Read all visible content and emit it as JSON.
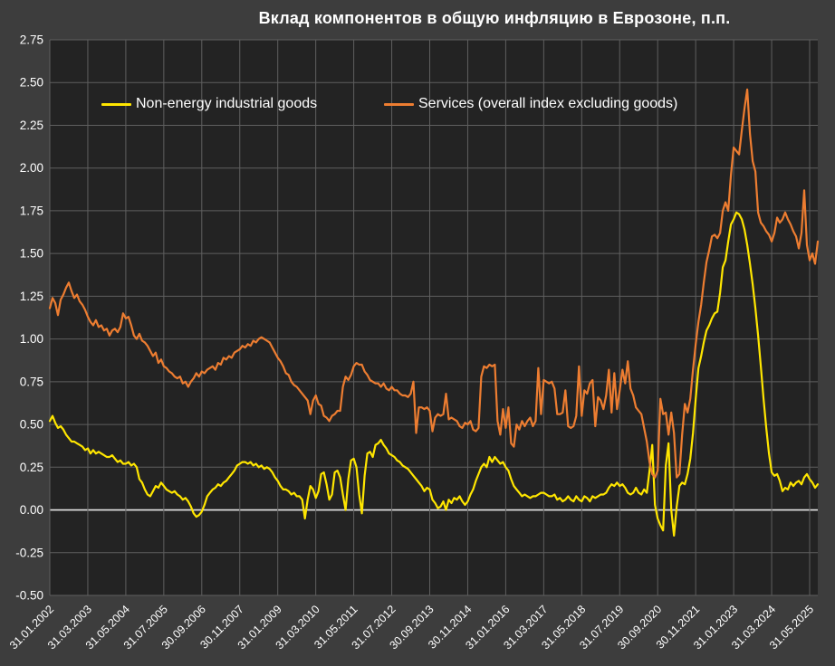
{
  "title": "Вклад компонентов в общую инфляцию в Еврозоне, п.п.",
  "colors": {
    "background": "#3d3d3d",
    "plot_background": "#232323",
    "gridline": "#5f5f5f",
    "zero_line": "#e8e8e8",
    "text": "#ffffff",
    "neig_line": "#ffe600",
    "services_line": "#ed7d31"
  },
  "legend": {
    "items": [
      {
        "label": "Non-energy industrial goods",
        "color": "#ffe600"
      },
      {
        "label": "Services (overall index excluding goods)",
        "color": "#ed7d31"
      }
    ]
  },
  "chart_data": {
    "type": "line",
    "title": "Вклад компонентов в общую инфляцию в Еврозоне, п.п.",
    "x_start": "2002-01",
    "x_freq": "monthly",
    "grid": true,
    "legend_position": "top-left-inside",
    "ylim": [
      -0.5,
      2.75
    ],
    "y_tick_step": 0.25,
    "x_tick_labels": [
      "31.01.2002",
      "31.03.2003",
      "31.05.2004",
      "31.07.2005",
      "30.09.2006",
      "30.11.2007",
      "31.01.2009",
      "31.03.2010",
      "31.05.2011",
      "31.07.2012",
      "30.09.2013",
      "30.11.2014",
      "31.01.2016",
      "31.03.2017",
      "31.05.2018",
      "31.07.2019",
      "30.09.2020",
      "30.11.2021",
      "31.01.2023",
      "31.03.2024",
      "31.05.2025"
    ],
    "x_tick_month_indices": [
      0,
      14,
      28,
      42,
      56,
      70,
      84,
      98,
      112,
      126,
      140,
      154,
      168,
      182,
      196,
      210,
      224,
      238,
      252,
      266,
      280
    ],
    "series": [
      {
        "name": "Non-energy industrial goods",
        "color": "#ffe600",
        "values": [
          0.52,
          0.55,
          0.51,
          0.48,
          0.49,
          0.47,
          0.44,
          0.42,
          0.4,
          0.4,
          0.39,
          0.38,
          0.37,
          0.35,
          0.36,
          0.33,
          0.35,
          0.33,
          0.34,
          0.33,
          0.32,
          0.31,
          0.31,
          0.32,
          0.3,
          0.28,
          0.29,
          0.27,
          0.27,
          0.28,
          0.26,
          0.27,
          0.25,
          0.18,
          0.16,
          0.12,
          0.09,
          0.08,
          0.11,
          0.14,
          0.13,
          0.16,
          0.14,
          0.12,
          0.11,
          0.1,
          0.11,
          0.09,
          0.08,
          0.06,
          0.07,
          0.05,
          0.02,
          -0.02,
          -0.04,
          -0.03,
          -0.01,
          0.03,
          0.08,
          0.1,
          0.12,
          0.13,
          0.15,
          0.14,
          0.16,
          0.17,
          0.19,
          0.21,
          0.23,
          0.26,
          0.27,
          0.28,
          0.28,
          0.27,
          0.28,
          0.26,
          0.27,
          0.25,
          0.26,
          0.24,
          0.25,
          0.24,
          0.22,
          0.19,
          0.17,
          0.14,
          0.12,
          0.12,
          0.11,
          0.09,
          0.1,
          0.08,
          0.08,
          0.06,
          -0.05,
          0.06,
          0.14,
          0.12,
          0.07,
          0.11,
          0.21,
          0.22,
          0.15,
          0.06,
          0.09,
          0.22,
          0.23,
          0.19,
          0.09,
          0.0,
          0.18,
          0.29,
          0.3,
          0.25,
          0.09,
          -0.02,
          0.2,
          0.33,
          0.34,
          0.31,
          0.38,
          0.39,
          0.41,
          0.38,
          0.36,
          0.33,
          0.32,
          0.31,
          0.29,
          0.28,
          0.26,
          0.25,
          0.24,
          0.22,
          0.2,
          0.18,
          0.16,
          0.14,
          0.11,
          0.13,
          0.12,
          0.06,
          0.04,
          0.01,
          0.02,
          0.05,
          0.0,
          0.06,
          0.04,
          0.07,
          0.06,
          0.08,
          0.05,
          0.03,
          0.05,
          0.09,
          0.12,
          0.17,
          0.21,
          0.25,
          0.27,
          0.25,
          0.31,
          0.28,
          0.31,
          0.29,
          0.27,
          0.28,
          0.25,
          0.23,
          0.18,
          0.14,
          0.12,
          0.1,
          0.08,
          0.09,
          0.08,
          0.07,
          0.08,
          0.08,
          0.09,
          0.1,
          0.1,
          0.09,
          0.08,
          0.08,
          0.09,
          0.06,
          0.07,
          0.05,
          0.06,
          0.08,
          0.06,
          0.05,
          0.08,
          0.06,
          0.05,
          0.08,
          0.07,
          0.05,
          0.08,
          0.07,
          0.08,
          0.09,
          0.09,
          0.1,
          0.13,
          0.15,
          0.14,
          0.16,
          0.14,
          0.15,
          0.13,
          0.1,
          0.09,
          0.1,
          0.13,
          0.1,
          0.09,
          0.12,
          0.1,
          0.23,
          0.38,
          0.03,
          -0.05,
          -0.09,
          -0.12,
          0.26,
          0.39,
          0.0,
          -0.15,
          0.02,
          0.14,
          0.16,
          0.15,
          0.21,
          0.3,
          0.45,
          0.65,
          0.83,
          0.9,
          0.98,
          1.05,
          1.08,
          1.12,
          1.15,
          1.16,
          1.27,
          1.42,
          1.46,
          1.57,
          1.67,
          1.7,
          1.74,
          1.73,
          1.7,
          1.64,
          1.55,
          1.44,
          1.32,
          1.18,
          1.02,
          0.84,
          0.65,
          0.48,
          0.33,
          0.22,
          0.2,
          0.21,
          0.17,
          0.11,
          0.13,
          0.12,
          0.16,
          0.14,
          0.16,
          0.17,
          0.15,
          0.19,
          0.21,
          0.18,
          0.16,
          0.13,
          0.15
        ]
      },
      {
        "name": "Services (overall index excluding goods)",
        "color": "#ed7d31",
        "values": [
          1.18,
          1.24,
          1.21,
          1.14,
          1.23,
          1.26,
          1.3,
          1.33,
          1.28,
          1.24,
          1.26,
          1.22,
          1.2,
          1.17,
          1.13,
          1.1,
          1.08,
          1.11,
          1.07,
          1.08,
          1.05,
          1.06,
          1.02,
          1.05,
          1.06,
          1.04,
          1.07,
          1.15,
          1.12,
          1.13,
          1.08,
          1.02,
          1.0,
          1.03,
          0.99,
          0.98,
          0.96,
          0.93,
          0.9,
          0.92,
          0.86,
          0.88,
          0.84,
          0.83,
          0.81,
          0.8,
          0.78,
          0.77,
          0.78,
          0.74,
          0.75,
          0.72,
          0.75,
          0.77,
          0.8,
          0.78,
          0.81,
          0.8,
          0.82,
          0.83,
          0.84,
          0.82,
          0.86,
          0.85,
          0.89,
          0.88,
          0.9,
          0.89,
          0.92,
          0.93,
          0.94,
          0.96,
          0.95,
          0.97,
          0.96,
          0.99,
          0.98,
          1.0,
          1.01,
          1.0,
          0.99,
          0.98,
          0.95,
          0.92,
          0.89,
          0.87,
          0.84,
          0.8,
          0.79,
          0.75,
          0.73,
          0.72,
          0.7,
          0.68,
          0.66,
          0.64,
          0.56,
          0.64,
          0.67,
          0.62,
          0.61,
          0.55,
          0.54,
          0.52,
          0.55,
          0.56,
          0.58,
          0.58,
          0.72,
          0.78,
          0.76,
          0.79,
          0.84,
          0.86,
          0.85,
          0.85,
          0.81,
          0.79,
          0.76,
          0.75,
          0.74,
          0.74,
          0.72,
          0.74,
          0.71,
          0.7,
          0.72,
          0.7,
          0.7,
          0.68,
          0.67,
          0.67,
          0.66,
          0.68,
          0.75,
          0.45,
          0.6,
          0.6,
          0.59,
          0.6,
          0.58,
          0.46,
          0.54,
          0.56,
          0.55,
          0.56,
          0.68,
          0.53,
          0.54,
          0.53,
          0.52,
          0.49,
          0.48,
          0.51,
          0.5,
          0.52,
          0.47,
          0.46,
          0.48,
          0.78,
          0.84,
          0.83,
          0.85,
          0.84,
          0.85,
          0.52,
          0.44,
          0.59,
          0.48,
          0.6,
          0.39,
          0.37,
          0.5,
          0.47,
          0.52,
          0.49,
          0.52,
          0.54,
          0.49,
          0.52,
          0.83,
          0.56,
          0.76,
          0.75,
          0.74,
          0.75,
          0.71,
          0.56,
          0.56,
          0.57,
          0.7,
          0.49,
          0.48,
          0.49,
          0.55,
          0.84,
          0.55,
          0.7,
          0.68,
          0.74,
          0.76,
          0.49,
          0.66,
          0.64,
          0.59,
          0.67,
          0.82,
          0.57,
          0.8,
          0.59,
          0.7,
          0.82,
          0.74,
          0.87,
          0.71,
          0.67,
          0.6,
          0.58,
          0.56,
          0.48,
          0.4,
          0.28,
          0.21,
          0.19,
          0.23,
          0.65,
          0.56,
          0.57,
          0.44,
          0.57,
          0.45,
          0.19,
          0.21,
          0.44,
          0.62,
          0.57,
          0.65,
          0.82,
          0.97,
          1.1,
          1.2,
          1.33,
          1.45,
          1.52,
          1.6,
          1.61,
          1.59,
          1.62,
          1.75,
          1.8,
          1.75,
          1.96,
          2.12,
          2.1,
          2.08,
          2.22,
          2.35,
          2.46,
          2.2,
          2.04,
          1.98,
          1.74,
          1.68,
          1.66,
          1.63,
          1.61,
          1.57,
          1.62,
          1.71,
          1.68,
          1.7,
          1.74,
          1.7,
          1.67,
          1.63,
          1.6,
          1.53,
          1.62,
          1.87,
          1.55,
          1.46,
          1.5,
          1.44,
          1.57
        ]
      }
    ]
  }
}
